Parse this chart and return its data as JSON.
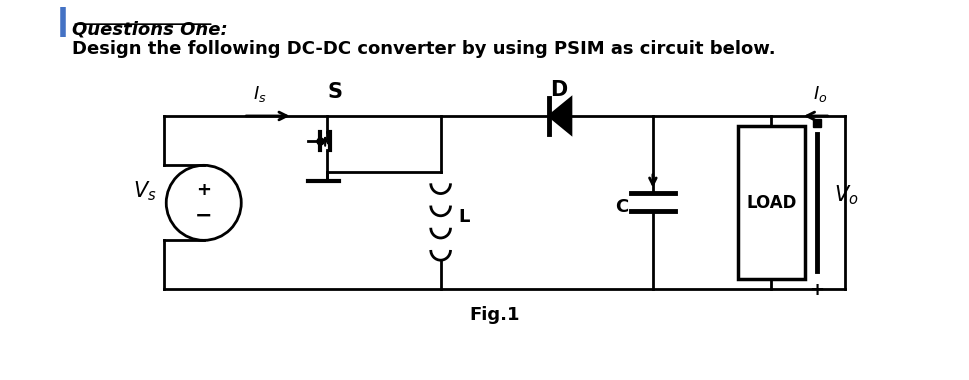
{
  "title_line1": "Questions One:",
  "title_line2": "Design the following DC-DC converter by using PSIM as circuit below.",
  "fig_label": "Fig.1",
  "bg_color": "#ffffff",
  "line_color": "#000000",
  "fig_caption_fontsize": 12,
  "title_fontsize": 13,
  "blue_accent": "#4472C4"
}
